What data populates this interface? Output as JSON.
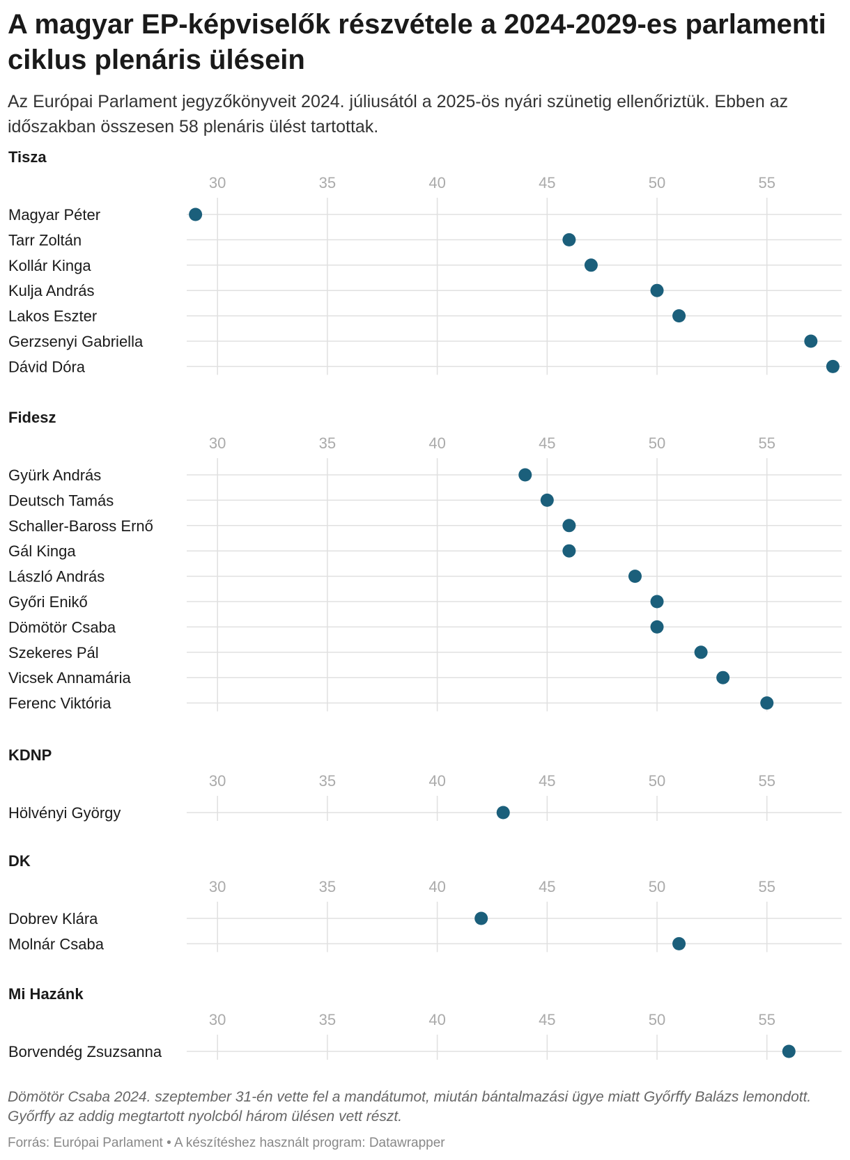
{
  "title": "A magyar EP-képviselők részvétele a 2024-2029-es parlamenti ciklus plenáris ülésein",
  "subtitle": "Az Európai Parlament jegyzőkönyveit 2024. júliusától a 2025-ös nyári szünetig ellenőriztük. Ebben az időszakban összesen 58 plenáris ülést tartottak.",
  "notes": "Dömötör Csaba 2024. szeptember 31-én vette fel a mandátumot, miután bántalmazási ügye miatt Győrffy Balázs lemondott. Győrffy az addig megtartott nyolcból három ülésen vett részt.",
  "source": "Forrás: Európai Parlament • A készítéshez használt program: Datawrapper",
  "colors": {
    "dot": "#1b5f7b",
    "grid": "#e0e0e0",
    "tick": "#aaaaaa"
  },
  "chart_data": [
    {
      "type": "scatter",
      "group": "Tisza",
      "xlim": [
        28.6,
        58.4
      ],
      "xticks": [
        30,
        35,
        40,
        45,
        50,
        55
      ],
      "rows": [
        {
          "name": "Magyar Péter",
          "value": 29
        },
        {
          "name": "Tarr Zoltán",
          "value": 46
        },
        {
          "name": "Kollár Kinga",
          "value": 47
        },
        {
          "name": "Kulja András",
          "value": 50
        },
        {
          "name": "Lakos Eszter",
          "value": 51
        },
        {
          "name": "Gerzsenyi Gabriella",
          "value": 57
        },
        {
          "name": "Dávid Dóra",
          "value": 58
        }
      ]
    },
    {
      "type": "scatter",
      "group": "Fidesz",
      "xlim": [
        28.6,
        58.4
      ],
      "xticks": [
        30,
        35,
        40,
        45,
        50,
        55
      ],
      "rows": [
        {
          "name": "Gyürk András",
          "value": 44
        },
        {
          "name": "Deutsch Tamás",
          "value": 45
        },
        {
          "name": "Schaller-Baross Ernő",
          "value": 46
        },
        {
          "name": "Gál Kinga",
          "value": 46
        },
        {
          "name": "László András",
          "value": 49
        },
        {
          "name": "Győri Enikő",
          "value": 50
        },
        {
          "name": "Dömötör Csaba",
          "value": 50
        },
        {
          "name": "Szekeres Pál",
          "value": 52
        },
        {
          "name": "Vicsek Annamária",
          "value": 53
        },
        {
          "name": "Ferenc Viktória",
          "value": 55
        }
      ]
    },
    {
      "type": "scatter",
      "group": "KDNP",
      "xlim": [
        28.6,
        58.4
      ],
      "xticks": [
        30,
        35,
        40,
        45,
        50,
        55
      ],
      "rows": [
        {
          "name": "Hölvényi György",
          "value": 43
        }
      ]
    },
    {
      "type": "scatter",
      "group": "DK",
      "xlim": [
        28.6,
        58.4
      ],
      "xticks": [
        30,
        35,
        40,
        45,
        50,
        55
      ],
      "rows": [
        {
          "name": "Dobrev Klára",
          "value": 42
        },
        {
          "name": "Molnár Csaba",
          "value": 51
        }
      ]
    },
    {
      "type": "scatter",
      "group": "Mi Hazánk",
      "xlim": [
        28.6,
        58.4
      ],
      "xticks": [
        30,
        35,
        40,
        45,
        50,
        55
      ],
      "rows": [
        {
          "name": "Borvendég Zsuzsanna",
          "value": 56
        }
      ]
    }
  ]
}
